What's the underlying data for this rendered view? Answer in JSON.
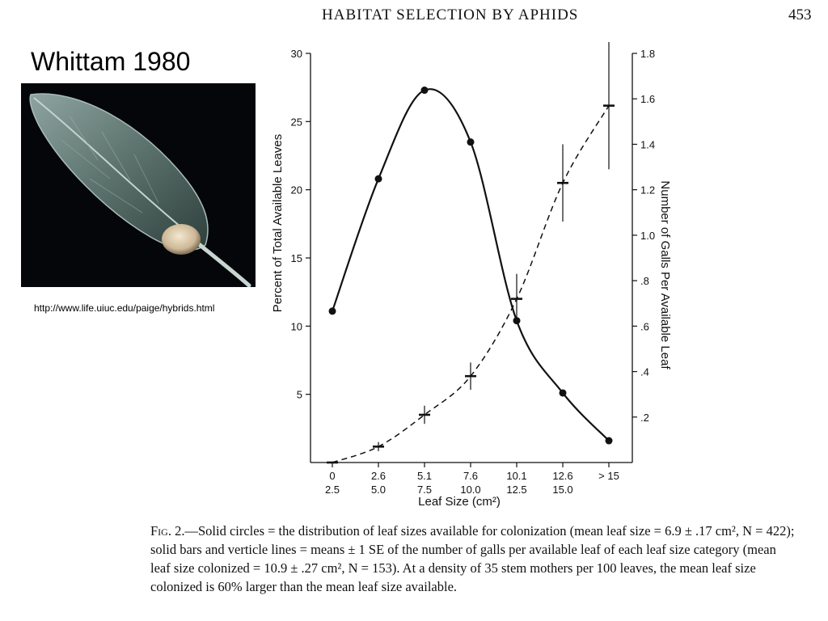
{
  "header": {
    "running_title": "HABITAT SELECTION BY APHIDS",
    "page_number": "453"
  },
  "slide": {
    "title": "Whittam 1980",
    "source_url": "http://www.life.uiuc.edu/paige/hybrids.html"
  },
  "photo": {
    "icon": "leaf-with-gall-icon"
  },
  "chart_data": {
    "type": "line",
    "categories": [
      {
        "top": "0",
        "bottom": "2.5"
      },
      {
        "top": "2.6",
        "bottom": "5.0"
      },
      {
        "top": "5.1",
        "bottom": "7.5"
      },
      {
        "top": "7.6",
        "bottom": "10.0"
      },
      {
        "top": "10.1",
        "bottom": "12.5"
      },
      {
        "top": "12.6",
        "bottom": "15.0"
      },
      {
        "top": "> 15",
        "bottom": ""
      }
    ],
    "xlabel": "Leaf Size (cm²)",
    "y_left": {
      "label": "Percent of Total Available Leaves",
      "ylim": [
        0,
        30
      ],
      "ticks": [
        5,
        10,
        15,
        20,
        25,
        30
      ]
    },
    "y_right": {
      "label": "Number of Galls Per Available Leaf",
      "ylim": [
        0,
        1.8
      ],
      "ticks": [
        0.2,
        0.4,
        0.6,
        0.8,
        1.0,
        1.2,
        1.4,
        1.6,
        1.8
      ],
      "tick_labels": [
        ".2",
        ".4",
        ".6",
        ".8",
        "1.0",
        "1.2",
        "1.4",
        "1.6",
        "1.8"
      ]
    },
    "series": [
      {
        "axis": "left",
        "style": "solid",
        "marker": "circle",
        "values": [
          11.1,
          20.8,
          27.3,
          23.5,
          10.4,
          5.1,
          1.6
        ]
      },
      {
        "axis": "right",
        "style": "dashed",
        "marker": "bar",
        "values": [
          0.0,
          0.07,
          0.21,
          0.38,
          0.72,
          1.23,
          1.57
        ],
        "se": [
          0.0,
          0.02,
          0.04,
          0.06,
          0.11,
          0.17,
          0.28
        ]
      }
    ],
    "grid": false
  },
  "caption": {
    "lead": "Fig. 2.",
    "text": "—Solid circles = the distribution of leaf sizes available for colonization (mean leaf size = 6.9 ± .17 cm², N = 422); solid bars and verticle lines = means ± 1 SE of the number of galls per available leaf of each leaf size category (mean leaf size colonized = 10.9 ± .27 cm², N = 153). At a density of 35 stem mothers per 100 leaves, the mean leaf size colonized is 60% larger than the mean leaf size available."
  }
}
